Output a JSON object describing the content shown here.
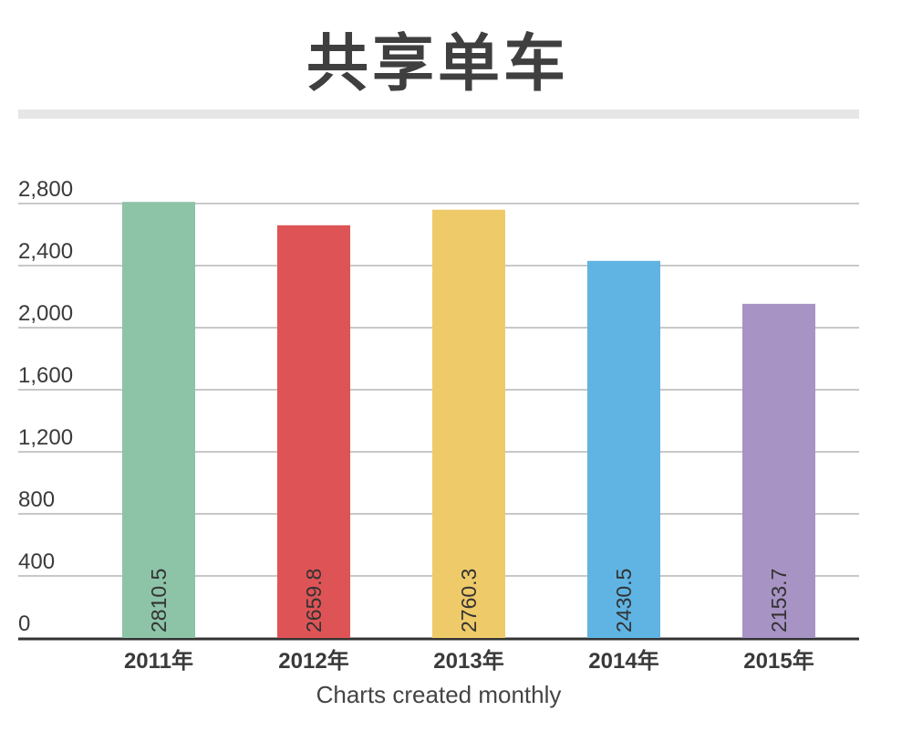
{
  "chart_data": {
    "type": "bar",
    "title": "共享单车",
    "caption": "Charts created monthly",
    "categories": [
      "2011年",
      "2012年",
      "2013年",
      "2014年",
      "2015年"
    ],
    "values": [
      2810.5,
      2659.8,
      2760.3,
      2430.5,
      2153.7
    ],
    "value_labels": [
      "2810.5",
      "2659.8",
      "2760.3",
      "2430.5",
      "2153.7"
    ],
    "colors": [
      "#8dc3a7",
      "#de5456",
      "#efca69",
      "#5fb4e3",
      "#a793c4"
    ],
    "ylim": [
      0,
      2800
    ],
    "yticks": [
      0,
      400,
      800,
      1200,
      1600,
      2000,
      2400,
      2800
    ],
    "ytick_labels": [
      "0",
      "400",
      "800",
      "1,200",
      "1,600",
      "2,000",
      "2,400",
      "2,800"
    ],
    "grid": true,
    "legend": "none"
  }
}
